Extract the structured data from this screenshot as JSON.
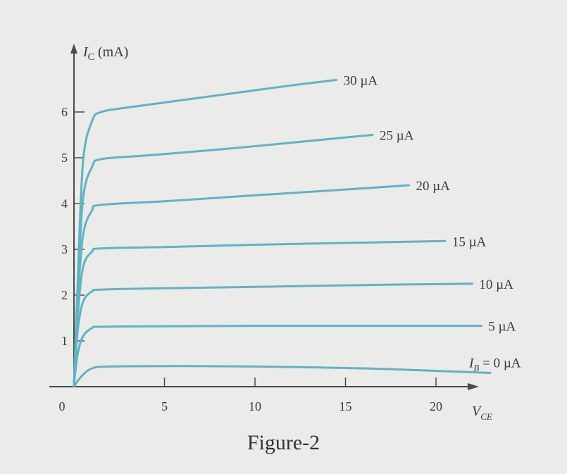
{
  "caption": "Figure-2",
  "colors": {
    "curve": "#5eb4c4",
    "axis": "#4a4a4a",
    "background": "#ebebea"
  },
  "chart_data": {
    "type": "line",
    "y_axis_label": {
      "symbol": "I",
      "subscript": "C",
      "unit": "(mA)"
    },
    "x_axis_label": {
      "symbol": "V",
      "subscript": "CE"
    },
    "x_ticks": [
      "0",
      "5",
      "10",
      "15",
      "20"
    ],
    "y_ticks": [
      "1",
      "2",
      "3",
      "4",
      "5",
      "6"
    ],
    "xlim": [
      0,
      22.5
    ],
    "ylim": [
      0,
      7.2
    ],
    "grid": false,
    "legend": "none (curve labels at right end of each curve)",
    "series": [
      {
        "name": "30 µA",
        "x": [
          0.2,
          0.5,
          1.0,
          1.5,
          3,
          6,
          9,
          12,
          14.5
        ],
        "y": [
          2.2,
          4.9,
          5.8,
          6.0,
          6.1,
          6.26,
          6.42,
          6.58,
          6.7
        ]
      },
      {
        "name": "25 µA",
        "x": [
          0.2,
          0.5,
          1.0,
          1.5,
          4,
          8,
          12,
          16.5
        ],
        "y": [
          2.0,
          4.1,
          4.8,
          4.97,
          5.05,
          5.18,
          5.33,
          5.5
        ]
      },
      {
        "name": "20 µA",
        "x": [
          0.2,
          0.5,
          1.0,
          1.5,
          5,
          10,
          14,
          18.5
        ],
        "y": [
          1.8,
          3.3,
          3.85,
          3.97,
          4.05,
          4.18,
          4.28,
          4.4
        ]
      },
      {
        "name": "15 µA",
        "x": [
          0.2,
          0.5,
          1.0,
          1.5,
          5,
          10,
          15,
          20.5
        ],
        "y": [
          1.5,
          2.6,
          2.95,
          3.02,
          3.05,
          3.1,
          3.14,
          3.18
        ]
      },
      {
        "name": "10 µA",
        "x": [
          0.2,
          0.5,
          1.0,
          1.5,
          5,
          10,
          16,
          22
        ],
        "y": [
          1.2,
          1.85,
          2.08,
          2.12,
          2.15,
          2.18,
          2.22,
          2.25
        ]
      },
      {
        "name": "5 µA",
        "x": [
          0.2,
          0.5,
          1.0,
          1.5,
          5,
          10,
          16,
          22.5
        ],
        "y": [
          0.7,
          1.1,
          1.28,
          1.31,
          1.32,
          1.33,
          1.33,
          1.33
        ]
      },
      {
        "name": "I",
        "name_subscript": "B",
        "name_suffix": " = 0 µA",
        "x": [
          0,
          0.4,
          1.0,
          2,
          6,
          10,
          16,
          21,
          23
        ],
        "y": [
          0,
          0.22,
          0.4,
          0.44,
          0.45,
          0.44,
          0.4,
          0.33,
          0.3
        ]
      }
    ]
  }
}
